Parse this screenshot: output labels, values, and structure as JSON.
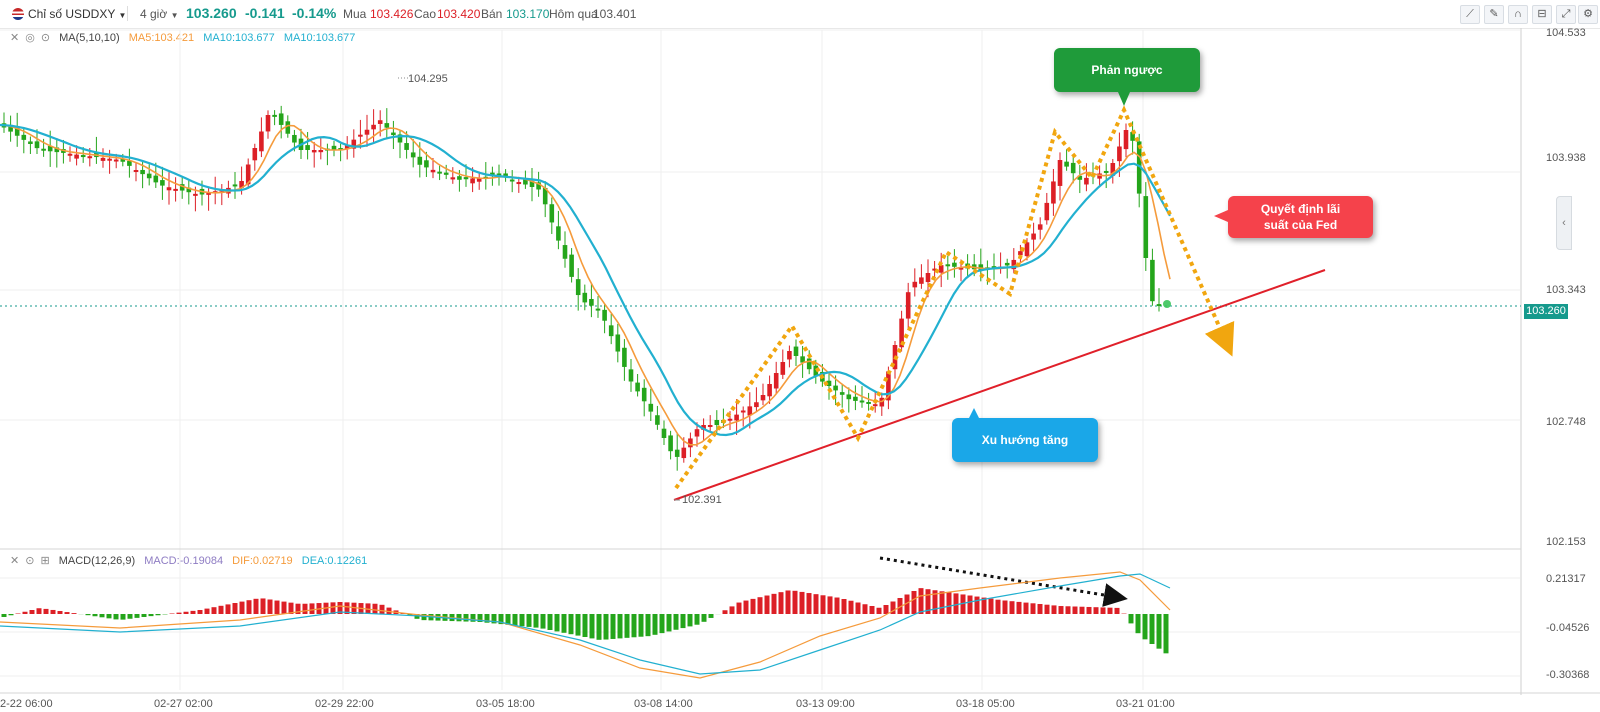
{
  "toolbar": {
    "flag_icon": "us-flag-icon",
    "symbol": "Chỉ số USDDXY",
    "interval": "4 giờ",
    "price": "103.260",
    "change": "-0.141",
    "change_pct": "-0.14%",
    "buy_label": "Mua",
    "buy_value": "103.426",
    "high_label": "Cao",
    "high_value": "103.420",
    "sell_label": "Bán",
    "sell_value": "103.170",
    "prev_label": "Hôm qua",
    "prev_value": "103.401",
    "tools": [
      "chart-tools-icon",
      "pencil-icon",
      "magnet-icon",
      "lock-icon",
      "expand-icon",
      "settings-icon"
    ]
  },
  "main_legend": {
    "name": "MA(5,10,10)",
    "ma5": "MA5:103.421",
    "ma10a": "MA10:103.677",
    "ma10b": "MA10:103.677"
  },
  "macd_legend": {
    "name": "MACD(12,26,9)",
    "macd": "MACD:-0.19084",
    "dif": "DIF:0.02719",
    "dea": "DEA:0.12261"
  },
  "price_axis": [
    "104.533",
    "103.938",
    "103.343",
    "102.748",
    "102.153"
  ],
  "current_price_tag": "103.260",
  "macd_axis": [
    "0.21317",
    "-0.04526",
    "-0.30368"
  ],
  "time_axis": [
    "2-22 06:00",
    "02-27 02:00",
    "02-29 22:00",
    "03-05 18:00",
    "03-08 14:00",
    "03-13 09:00",
    "03-18 05:00",
    "03-21 01:00"
  ],
  "high_label": "104.295",
  "low_label": "102.391",
  "annotations": {
    "rebound": "Phản ngược",
    "fed_line1": "Quyết định lãi",
    "fed_line2": "suất của Fed",
    "uptrend": "Xu hướng tăng"
  },
  "colors": {
    "up": "#dc1f26",
    "down": "#24a51b",
    "ma5": "#f59b3c",
    "ma10": "#22b0d0",
    "trend": "#e0202a",
    "arrows": "#f1a60f",
    "price_tag": "#169a8d",
    "rebound_box": "#1f9b3a",
    "fed_box": "#f5424b",
    "uptrend_box": "#1aa7e8"
  }
}
